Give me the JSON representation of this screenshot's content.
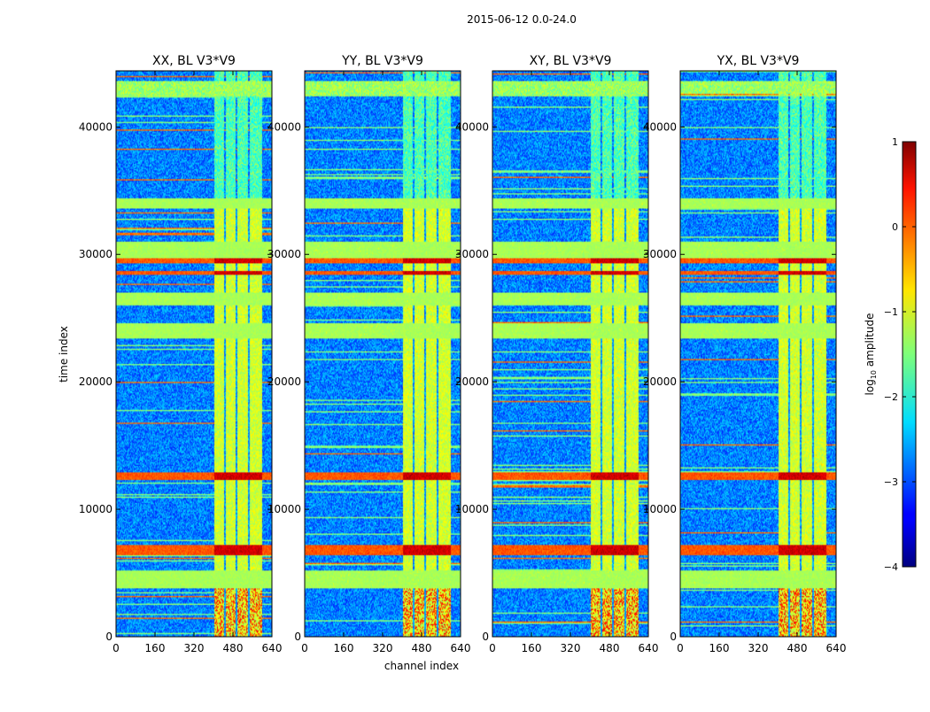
{
  "suptitle": "2015-06-12 0.0-24.0",
  "chart_data": {
    "type": "heatmap",
    "panels": [
      {
        "title": "XX, BL V3*V9",
        "ylabel": "time index"
      },
      {
        "title": "YY, BL V3*V9",
        "xlabel": "channel index"
      },
      {
        "title": "XY, BL V3*V9"
      },
      {
        "title": "YX, BL V3*V9"
      }
    ],
    "x": {
      "range": [
        0,
        640
      ],
      "ticks": [
        0,
        160,
        320,
        480,
        640
      ]
    },
    "y": {
      "range": [
        0,
        44400
      ],
      "ticks": [
        0,
        10000,
        20000,
        30000,
        40000
      ]
    },
    "colorbar": {
      "label": "log10 amplitude",
      "range": [
        -4,
        1
      ],
      "ticks": [
        -4,
        -3,
        -2,
        -1,
        0,
        1
      ],
      "tick_labels": [
        "−4",
        "−3",
        "−2",
        "−1",
        "0",
        "1"
      ],
      "colormap": "jet"
    },
    "grid": false,
    "features": {
      "hot_channel_band": [
        405,
        600
      ],
      "green_time_bands": [
        [
          3800,
          5200
        ],
        [
          23400,
          24600
        ],
        [
          26000,
          27000
        ],
        [
          29500,
          31000
        ],
        [
          33600,
          34400
        ]
      ],
      "red_time_bands": [
        [
          6400,
          7200
        ],
        [
          12300,
          12900
        ],
        [
          29300,
          29700
        ],
        [
          28400,
          28700
        ]
      ]
    }
  }
}
